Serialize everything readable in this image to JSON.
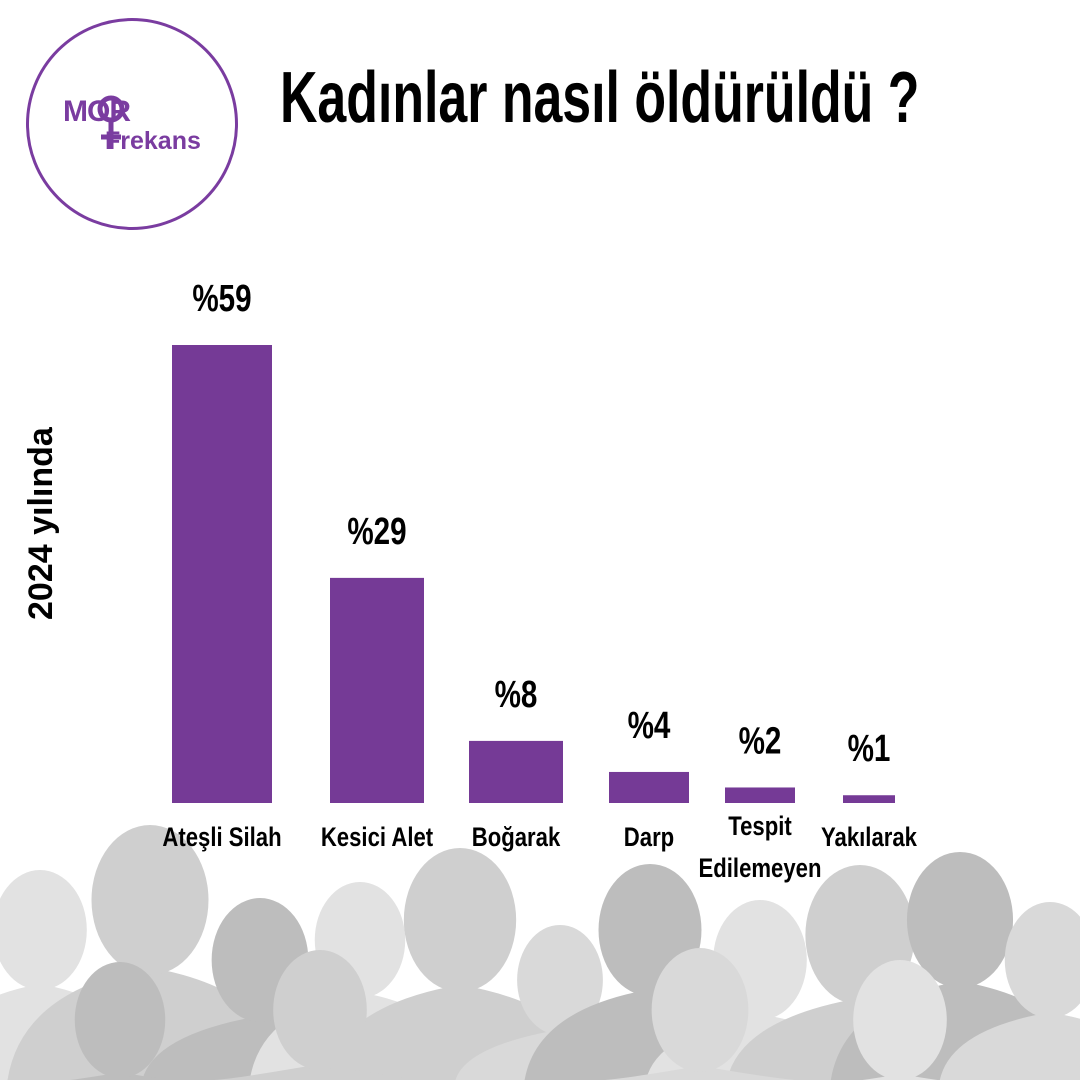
{
  "logo": {
    "text_top": "MOR",
    "text_bottom": "Frekans",
    "color": "#7a3ca0"
  },
  "title": "Kadınlar nasıl öldürüldü  ?",
  "colors": {
    "bar": "#753a96",
    "text": "#000000",
    "silhouettes": [
      "#e2e2e2",
      "#cfcfcf",
      "#bdbdbd",
      "#d9d9d9"
    ]
  },
  "chart_data": {
    "type": "bar",
    "categories": [
      "Ateşli Silah",
      "Kesici Alet",
      "Boğarak",
      "Darp",
      "Tespit Edilemeyen",
      "Yakılarak"
    ],
    "category_lines": [
      [
        "Ateşli Silah"
      ],
      [
        "Kesici Alet"
      ],
      [
        "Boğarak"
      ],
      [
        "Darp"
      ],
      [
        "Tespit",
        "Edilemeyen"
      ],
      [
        "Yakılarak"
      ]
    ],
    "values": [
      59,
      29,
      8,
      4,
      2,
      1
    ],
    "value_labels": [
      "%59",
      "%29",
      "%8",
      "%4",
      "%2",
      "%1"
    ],
    "ylabel": "2024 yılında",
    "ylim": [
      0,
      59
    ],
    "grid": false
  }
}
